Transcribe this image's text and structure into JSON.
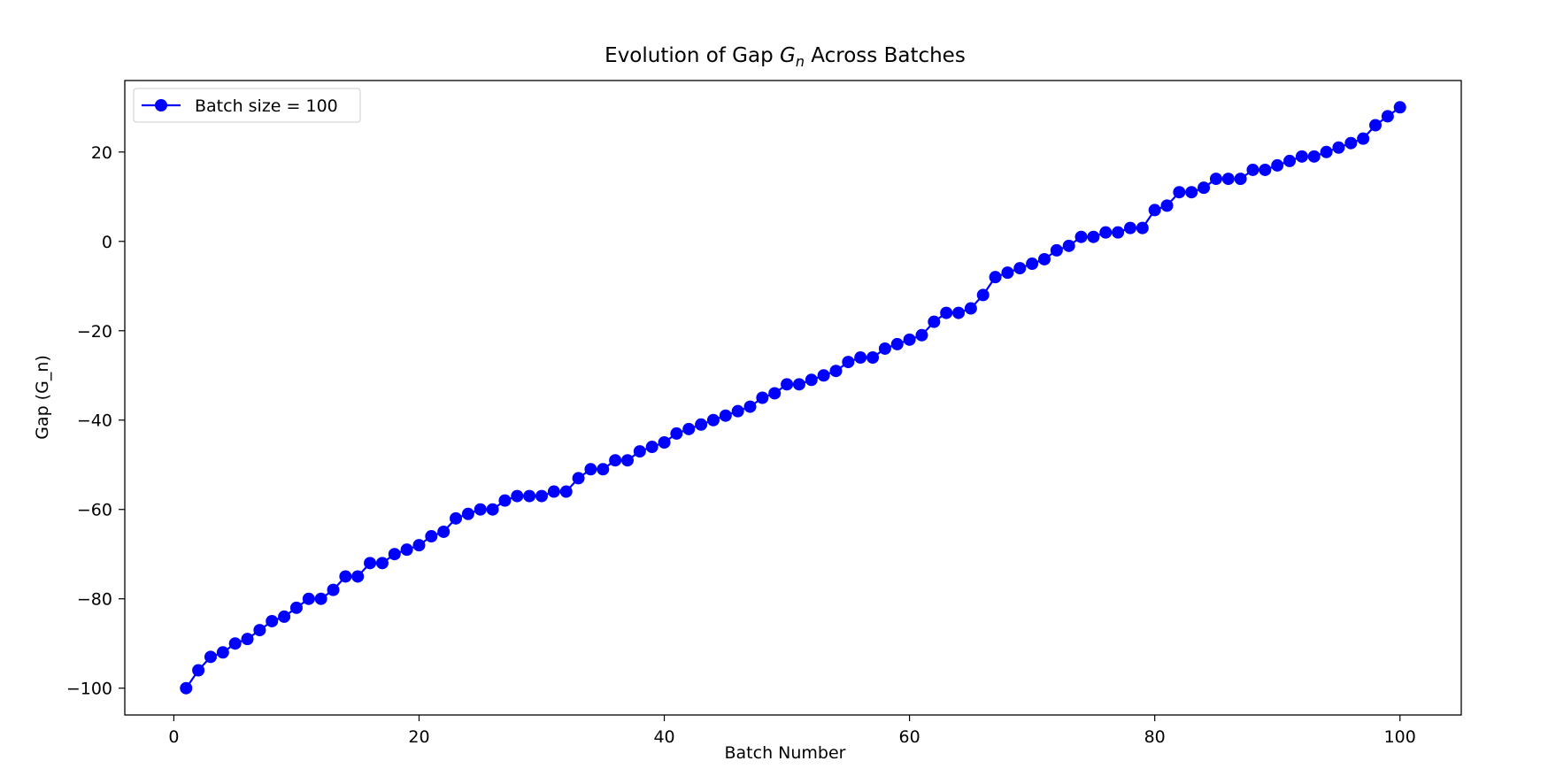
{
  "chart_data": {
    "type": "line",
    "title_prefix": "Evolution of Gap ",
    "title_symbol": "G",
    "title_subscript": "n",
    "title_suffix": " Across Batches",
    "xlabel": "Batch Number",
    "ylabel": "Gap (G_n)",
    "xlim": [
      -4,
      105
    ],
    "ylim": [
      -106,
      36
    ],
    "xticks": [
      0,
      20,
      40,
      60,
      80,
      100
    ],
    "yticks": [
      -100,
      -80,
      -60,
      -40,
      -20,
      0,
      20
    ],
    "grid": false,
    "legend_position": "top-left",
    "series": [
      {
        "name": "Batch size = 100",
        "color": "#0000ff",
        "marker": "circle",
        "x": [
          1,
          2,
          3,
          4,
          5,
          6,
          7,
          8,
          9,
          10,
          11,
          12,
          13,
          14,
          15,
          16,
          17,
          18,
          19,
          20,
          21,
          22,
          23,
          24,
          25,
          26,
          27,
          28,
          29,
          30,
          31,
          32,
          33,
          34,
          35,
          36,
          37,
          38,
          39,
          40,
          41,
          42,
          43,
          44,
          45,
          46,
          47,
          48,
          49,
          50,
          51,
          52,
          53,
          54,
          55,
          56,
          57,
          58,
          59,
          60,
          61,
          62,
          63,
          64,
          65,
          66,
          67,
          68,
          69,
          70,
          71,
          72,
          73,
          74,
          75,
          76,
          77,
          78,
          79,
          80,
          81,
          82,
          83,
          84,
          85,
          86,
          87,
          88,
          89,
          90,
          91,
          92,
          93,
          94,
          95,
          96,
          97,
          98,
          99,
          100
        ],
        "values": [
          -100,
          -96,
          -93,
          -92,
          -90,
          -89,
          -87,
          -85,
          -84,
          -82,
          -80,
          -80,
          -78,
          -75,
          -75,
          -72,
          -72,
          -70,
          -69,
          -68,
          -66,
          -65,
          -62,
          -61,
          -60,
          -60,
          -58,
          -57,
          -57,
          -57,
          -56,
          -56,
          -53,
          -51,
          -51,
          -49,
          -49,
          -47,
          -46,
          -45,
          -43,
          -42,
          -41,
          -40,
          -39,
          -38,
          -37,
          -35,
          -34,
          -32,
          -32,
          -31,
          -30,
          -29,
          -27,
          -26,
          -26,
          -24,
          -23,
          -22,
          -21,
          -18,
          -16,
          -16,
          -15,
          -12,
          -8,
          -7,
          -6,
          -5,
          -4,
          -2,
          -1,
          1,
          1,
          2,
          2,
          3,
          3,
          7,
          8,
          11,
          11,
          12,
          14,
          14,
          14,
          16,
          16,
          17,
          18,
          19,
          19,
          20,
          21,
          22,
          23,
          26,
          28,
          30
        ]
      }
    ]
  }
}
